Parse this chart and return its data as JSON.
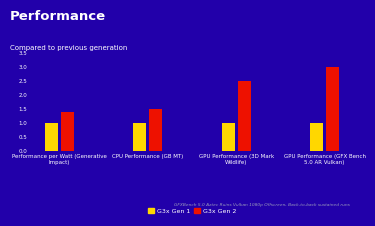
{
  "title": "Performance",
  "subtitle": "Compared to previous generation",
  "footnote": "GFXBench 5.0 Aztec Ruins Vulkan 1080p Offscreen, Back-to-back sustained runs",
  "categories": [
    "Performance per Watt (Generative\nImpact)",
    "CPU Performance (GB MT)",
    "GPU Performance (3D Mark\nWildlife)",
    "GPU Performance (GFX Bench\n5.0 AR Vulkan)"
  ],
  "gen1_values": [
    1.0,
    1.0,
    1.0,
    1.0
  ],
  "gen2_values": [
    1.4,
    1.5,
    2.5,
    3.0
  ],
  "gen1_color": "#FFD700",
  "gen2_color": "#EE1100",
  "background_color": "#2200AA",
  "text_color": "#FFFFFF",
  "ylim": [
    0.0,
    3.5
  ],
  "yticks": [
    0.0,
    0.5,
    1.0,
    1.5,
    2.0,
    2.5,
    3.0,
    3.5
  ],
  "title_fontsize": 9.5,
  "subtitle_fontsize": 5.0,
  "tick_fontsize": 4.0,
  "legend_fontsize": 4.5,
  "footnote_fontsize": 3.2
}
